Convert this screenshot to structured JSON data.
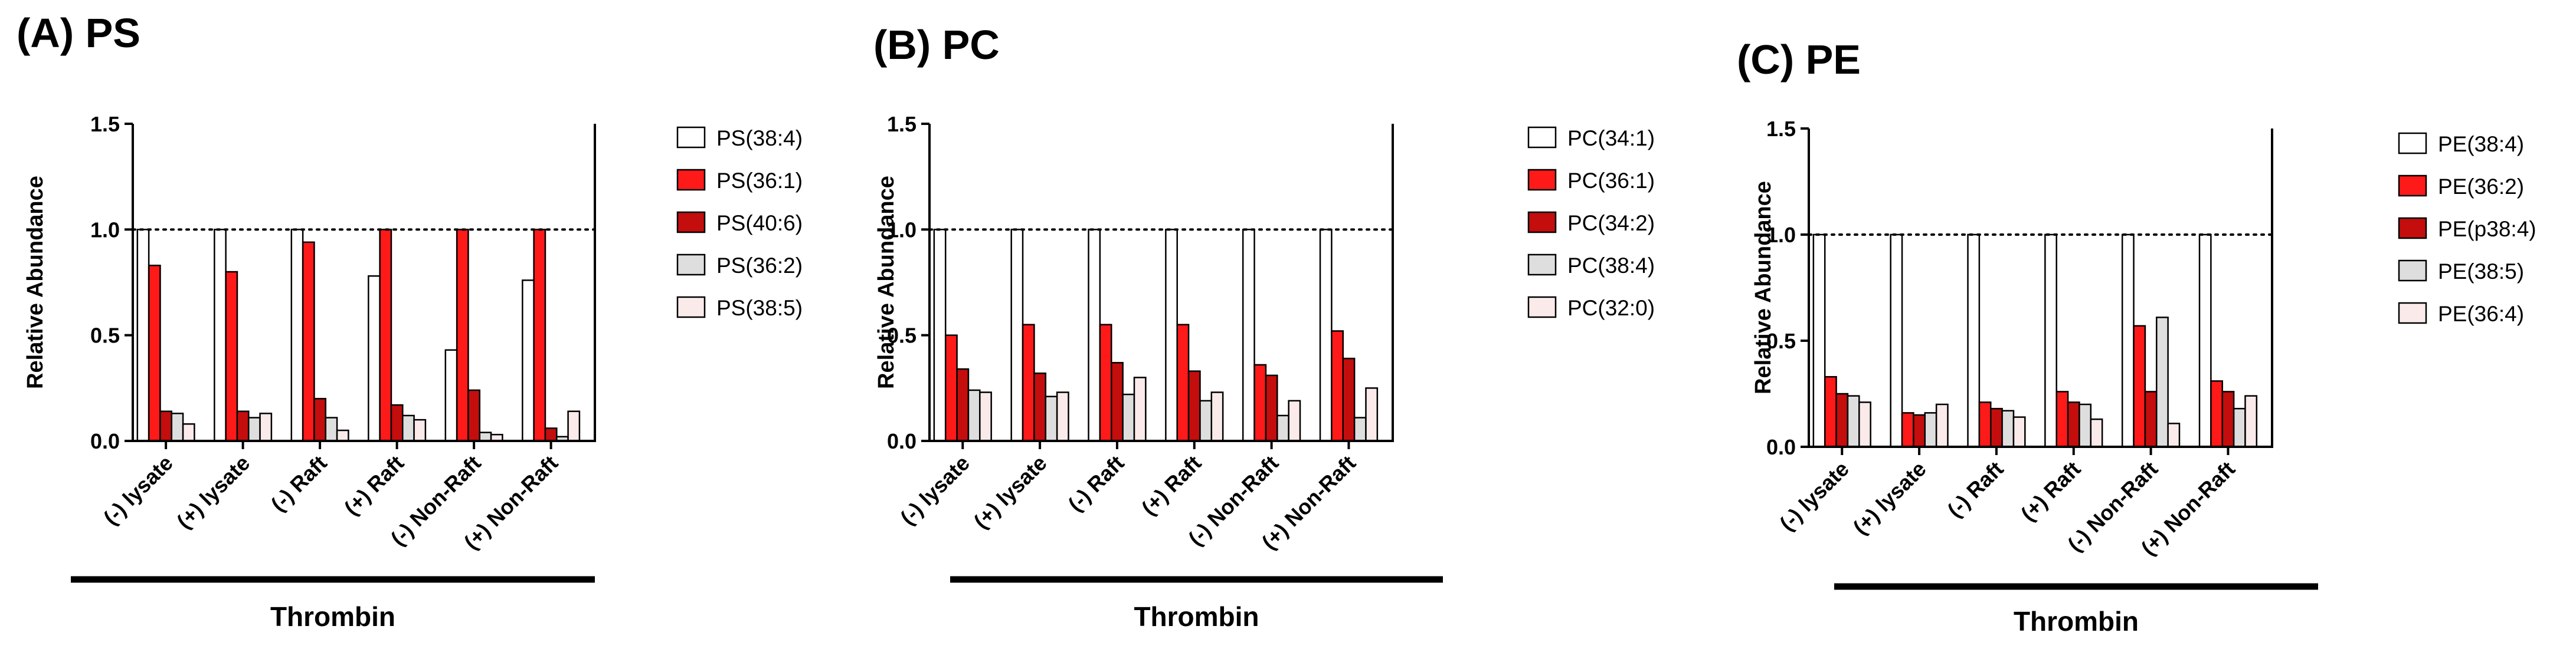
{
  "figure": {
    "colors": {
      "white": "#ffffff",
      "red": "#ff1a1a",
      "dark_red": "#c40d0d",
      "light_gray": "#dedede",
      "pale_pink": "#fbeaea",
      "outline": "#000000"
    }
  },
  "chart_data": [
    {
      "type": "bar",
      "title": "(A) PS",
      "ylabel": "Relative Abundance",
      "xlabel": "",
      "group_label": "Thrombin",
      "ylim": [
        0,
        1.5
      ],
      "yticks": [
        "0.0",
        "0.5",
        "1.0",
        "1.5"
      ],
      "reference_line": 1.0,
      "categories": [
        "(-) lysate",
        "(+) lysate",
        "(-) Raft",
        "(+) Raft",
        "(-) Non-Raft",
        "(+) Non-Raft"
      ],
      "series": [
        {
          "name": "PS(38:4)",
          "color": "white",
          "values": [
            1.0,
            1.0,
            1.0,
            0.78,
            0.43,
            0.76
          ]
        },
        {
          "name": "PS(36:1)",
          "color": "red",
          "values": [
            0.83,
            0.8,
            0.94,
            1.0,
            1.0,
            1.0
          ]
        },
        {
          "name": "PS(40:6)",
          "color": "dark_red",
          "values": [
            0.14,
            0.14,
            0.2,
            0.17,
            0.24,
            0.06
          ]
        },
        {
          "name": "PS(36:2)",
          "color": "light_gray",
          "values": [
            0.13,
            0.11,
            0.11,
            0.12,
            0.04,
            0.02
          ]
        },
        {
          "name": "PS(38:5)",
          "color": "pale_pink",
          "values": [
            0.08,
            0.13,
            0.05,
            0.1,
            0.03,
            0.14
          ]
        }
      ]
    },
    {
      "type": "bar",
      "title": "(B) PC",
      "ylabel": "Relative Abundance",
      "xlabel": "",
      "group_label": "Thrombin",
      "ylim": [
        0,
        1.5
      ],
      "yticks": [
        "0.0",
        "0.5",
        "1.0",
        "1.5"
      ],
      "reference_line": 1.0,
      "categories": [
        "(-) lysate",
        "(+) lysate",
        "(-) Raft",
        "(+) Raft",
        "(-) Non-Raft",
        "(+) Non-Raft"
      ],
      "series": [
        {
          "name": "PC(34:1)",
          "color": "white",
          "values": [
            1.0,
            1.0,
            1.0,
            1.0,
            1.0,
            1.0
          ]
        },
        {
          "name": "PC(36:1)",
          "color": "red",
          "values": [
            0.5,
            0.55,
            0.55,
            0.55,
            0.36,
            0.52
          ]
        },
        {
          "name": "PC(34:2)",
          "color": "dark_red",
          "values": [
            0.34,
            0.32,
            0.37,
            0.33,
            0.31,
            0.39
          ]
        },
        {
          "name": "PC(38:4)",
          "color": "light_gray",
          "values": [
            0.24,
            0.21,
            0.22,
            0.19,
            0.12,
            0.11
          ]
        },
        {
          "name": "PC(32:0)",
          "color": "pale_pink",
          "values": [
            0.23,
            0.23,
            0.3,
            0.23,
            0.19,
            0.25
          ]
        }
      ]
    },
    {
      "type": "bar",
      "title": "(C) PE",
      "ylabel": "Relative Abundance",
      "xlabel": "",
      "group_label": "Thrombin",
      "ylim": [
        0,
        1.5
      ],
      "yticks": [
        "0.0",
        "0.5",
        "1.0",
        "1.5"
      ],
      "reference_line": 1.0,
      "categories": [
        "(-) lysate",
        "(+) lysate",
        "(-) Raft",
        "(+) Raft",
        "(-) Non-Raft",
        "(+) Non-Raft"
      ],
      "series": [
        {
          "name": "PE(38:4)",
          "color": "white",
          "values": [
            1.0,
            1.0,
            1.0,
            1.0,
            1.0,
            1.0
          ]
        },
        {
          "name": "PE(36:2)",
          "color": "red",
          "values": [
            0.33,
            0.16,
            0.21,
            0.26,
            0.57,
            0.31
          ]
        },
        {
          "name": "PE(p38:4)",
          "color": "dark_red",
          "values": [
            0.25,
            0.15,
            0.18,
            0.21,
            0.26,
            0.26
          ]
        },
        {
          "name": "PE(38:5)",
          "color": "light_gray",
          "values": [
            0.24,
            0.16,
            0.17,
            0.2,
            0.61,
            0.18
          ]
        },
        {
          "name": "PE(36:4)",
          "color": "pale_pink",
          "values": [
            0.21,
            0.2,
            0.14,
            0.13,
            0.11,
            0.24
          ]
        }
      ]
    }
  ]
}
